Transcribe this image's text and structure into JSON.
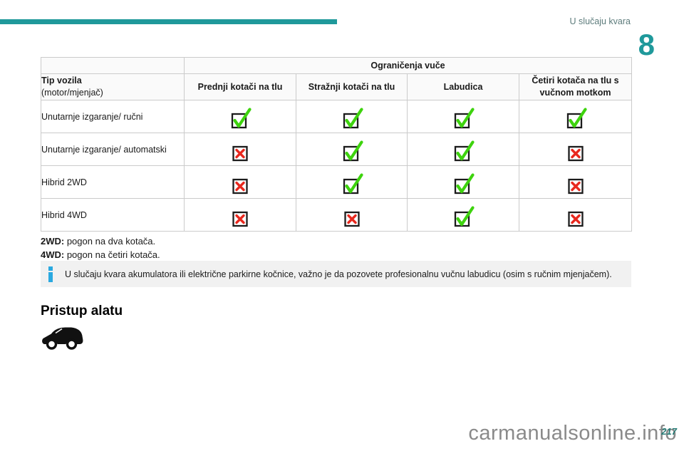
{
  "header": {
    "section_label": "U slučaju kvara",
    "chapter_number": "8"
  },
  "table": {
    "span_header": "Ograničenja vuče",
    "row_header": {
      "title": "Tip vozila",
      "subtitle": "(motor/mjenjač)"
    },
    "columns": [
      "Prednji kotači na tlu",
      "Stražnji kotači na tlu",
      "Labudica",
      "Četiri kotača na tlu s vučnom motkom"
    ],
    "rows": [
      {
        "label": "Unutarnje izgaranje/ ručni",
        "values": [
          "check",
          "check",
          "check",
          "check"
        ]
      },
      {
        "label": "Unutarnje izgaranje/ automatski",
        "values": [
          "cross",
          "check",
          "check",
          "cross"
        ]
      },
      {
        "label": "Hibrid 2WD",
        "values": [
          "cross",
          "check",
          "check",
          "cross"
        ]
      },
      {
        "label": "Hibrid 4WD",
        "values": [
          "cross",
          "cross",
          "check",
          "cross"
        ]
      }
    ]
  },
  "footnotes": [
    {
      "term": "2WD:",
      "text": " pogon na dva kotača."
    },
    {
      "term": "4WD:",
      "text": " pogon na četiri kotača."
    }
  ],
  "info_note": {
    "text": "U slučaju kvara akumulatora ili električne parkirne kočnice, važno je da pozovete profesionalnu vučnu labudicu (osim s ručnim mjenjačem)."
  },
  "section_heading": "Pristup alatu",
  "footer": {
    "watermark": "carmanualsonline.info",
    "page_number": "217"
  },
  "colors": {
    "accent_teal": "#1f999b",
    "check_green": "#3ed30e",
    "cross_red": "#e8281e",
    "info_blue": "#2aa9e0",
    "watermark_gray": "#8a8a8a"
  }
}
